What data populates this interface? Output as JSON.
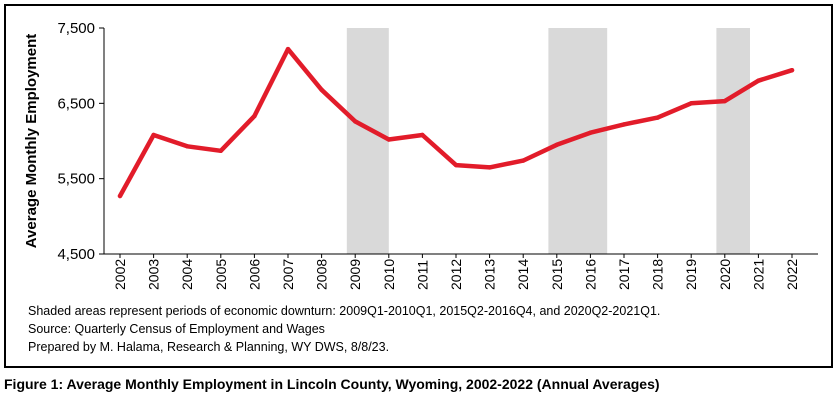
{
  "chart_data": {
    "type": "line",
    "title": "",
    "xlabel": "",
    "ylabel": "Average Monthly Employment",
    "ylim": [
      4500,
      7500
    ],
    "yticks": [
      4500,
      5500,
      6500,
      7500
    ],
    "ytick_labels": [
      "4,500",
      "5,500",
      "6,500",
      "7,500"
    ],
    "x": [
      "2002",
      "2003",
      "2004",
      "2005",
      "2006",
      "2007",
      "2008",
      "2009",
      "2010",
      "2011",
      "2012",
      "2013",
      "2014",
      "2015",
      "2016",
      "2017",
      "2018",
      "2019",
      "2020",
      "2021",
      "2022"
    ],
    "series": [
      {
        "values": [
          5270,
          6080,
          5930,
          5870,
          6330,
          7220,
          6680,
          6260,
          6020,
          6080,
          5680,
          5650,
          5740,
          5950,
          6110,
          6220,
          6310,
          6500,
          6530,
          6800,
          6940
        ]
      }
    ],
    "shaded_periods": [
      {
        "start": 2008.75,
        "end": 2010.0
      },
      {
        "start": 2014.75,
        "end": 2016.5
      },
      {
        "start": 2019.75,
        "end": 2020.75
      }
    ],
    "grid": false,
    "colors": {
      "line": "#e21c2a",
      "shade": "#d9d9d9"
    }
  },
  "notes": [
    "Shaded areas represent periods of economic downturn: 2009Q1-2010Q1, 2015Q2-2016Q4, and 2020Q2-2021Q1.",
    "Source: Quarterly Census of Employment and Wages",
    "Prepared by M. Halama, Research & Planning, WY DWS, 8/8/23."
  ],
  "caption": "Figure 1: Average Monthly Employment in Lincoln County, Wyoming, 2002-2022 (Annual Averages)"
}
